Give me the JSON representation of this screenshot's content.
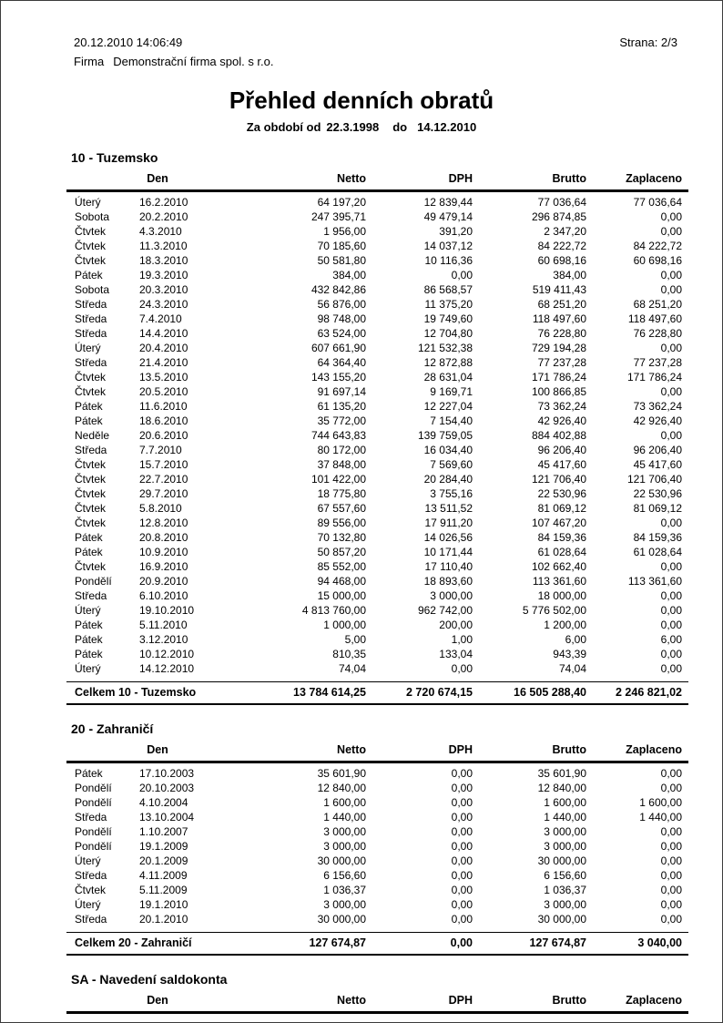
{
  "header": {
    "printed_at": "20.12.2010  14:06:49",
    "page_label": "Strana: 2/3",
    "firm_label": "Firma",
    "firm_name": "Demonstrační firma spol. s r.o.",
    "title": "Přehled denních obratů",
    "period": {
      "prefix": "Za období od",
      "from": "22.3.1998",
      "do_label": "do",
      "to": "14.12.2010"
    }
  },
  "columns": [
    "Den",
    "Netto",
    "DPH",
    "Brutto",
    "Zaplaceno"
  ],
  "sections": [
    {
      "title": "10 - Tuzemsko",
      "rows": [
        [
          "Úterý",
          "16.2.2010",
          "64 197,20",
          "12 839,44",
          "77 036,64",
          "77 036,64"
        ],
        [
          "Sobota",
          "20.2.2010",
          "247 395,71",
          "49 479,14",
          "296 874,85",
          "0,00"
        ],
        [
          "Čtvtek",
          "4.3.2010",
          "1 956,00",
          "391,20",
          "2 347,20",
          "0,00"
        ],
        [
          "Čtvtek",
          "11.3.2010",
          "70 185,60",
          "14 037,12",
          "84 222,72",
          "84 222,72"
        ],
        [
          "Čtvtek",
          "18.3.2010",
          "50 581,80",
          "10 116,36",
          "60 698,16",
          "60 698,16"
        ],
        [
          "Pátek",
          "19.3.2010",
          "384,00",
          "0,00",
          "384,00",
          "0,00"
        ],
        [
          "Sobota",
          "20.3.2010",
          "432 842,86",
          "86 568,57",
          "519 411,43",
          "0,00"
        ],
        [
          "Středa",
          "24.3.2010",
          "56 876,00",
          "11 375,20",
          "68 251,20",
          "68 251,20"
        ],
        [
          "Středa",
          "7.4.2010",
          "98 748,00",
          "19 749,60",
          "118 497,60",
          "118 497,60"
        ],
        [
          "Středa",
          "14.4.2010",
          "63 524,00",
          "12 704,80",
          "76 228,80",
          "76 228,80"
        ],
        [
          "Úterý",
          "20.4.2010",
          "607 661,90",
          "121 532,38",
          "729 194,28",
          "0,00"
        ],
        [
          "Středa",
          "21.4.2010",
          "64 364,40",
          "12 872,88",
          "77 237,28",
          "77 237,28"
        ],
        [
          "Čtvtek",
          "13.5.2010",
          "143 155,20",
          "28 631,04",
          "171 786,24",
          "171 786,24"
        ],
        [
          "Čtvtek",
          "20.5.2010",
          "91 697,14",
          "9 169,71",
          "100 866,85",
          "0,00"
        ],
        [
          "Pátek",
          "11.6.2010",
          "61 135,20",
          "12 227,04",
          "73 362,24",
          "73 362,24"
        ],
        [
          "Pátek",
          "18.6.2010",
          "35 772,00",
          "7 154,40",
          "42 926,40",
          "42 926,40"
        ],
        [
          "Neděle",
          "20.6.2010",
          "744 643,83",
          "139 759,05",
          "884 402,88",
          "0,00"
        ],
        [
          "Středa",
          "7.7.2010",
          "80 172,00",
          "16 034,40",
          "96 206,40",
          "96 206,40"
        ],
        [
          "Čtvtek",
          "15.7.2010",
          "37 848,00",
          "7 569,60",
          "45 417,60",
          "45 417,60"
        ],
        [
          "Čtvtek",
          "22.7.2010",
          "101 422,00",
          "20 284,40",
          "121 706,40",
          "121 706,40"
        ],
        [
          "Čtvtek",
          "29.7.2010",
          "18 775,80",
          "3 755,16",
          "22 530,96",
          "22 530,96"
        ],
        [
          "Čtvtek",
          "5.8.2010",
          "67 557,60",
          "13 511,52",
          "81 069,12",
          "81 069,12"
        ],
        [
          "Čtvtek",
          "12.8.2010",
          "89 556,00",
          "17 911,20",
          "107 467,20",
          "0,00"
        ],
        [
          "Pátek",
          "20.8.2010",
          "70 132,80",
          "14 026,56",
          "84 159,36",
          "84 159,36"
        ],
        [
          "Pátek",
          "10.9.2010",
          "50 857,20",
          "10 171,44",
          "61 028,64",
          "61 028,64"
        ],
        [
          "Čtvtek",
          "16.9.2010",
          "85 552,00",
          "17 110,40",
          "102 662,40",
          "0,00"
        ],
        [
          "Pondělí",
          "20.9.2010",
          "94 468,00",
          "18 893,60",
          "113 361,60",
          "113 361,60"
        ],
        [
          "Středa",
          "6.10.2010",
          "15 000,00",
          "3 000,00",
          "18 000,00",
          "0,00"
        ],
        [
          "Úterý",
          "19.10.2010",
          "4 813 760,00",
          "962 742,00",
          "5 776 502,00",
          "0,00"
        ],
        [
          "Pátek",
          "5.11.2010",
          "1 000,00",
          "200,00",
          "1 200,00",
          "0,00"
        ],
        [
          "Pátek",
          "3.12.2010",
          "5,00",
          "1,00",
          "6,00",
          "6,00"
        ],
        [
          "Pátek",
          "10.12.2010",
          "810,35",
          "133,04",
          "943,39",
          "0,00"
        ],
        [
          "Úterý",
          "14.12.2010",
          "74,04",
          "0,00",
          "74,04",
          "0,00"
        ]
      ],
      "total": {
        "label": "Celkem 10 - Tuzemsko",
        "values": [
          "13 784 614,25",
          "2 720 674,15",
          "16 505 288,40",
          "2 246 821,02"
        ]
      }
    },
    {
      "title": "20 - Zahraničí",
      "rows": [
        [
          "Pátek",
          "17.10.2003",
          "35 601,90",
          "0,00",
          "35 601,90",
          "0,00"
        ],
        [
          "Pondělí",
          "20.10.2003",
          "12 840,00",
          "0,00",
          "12 840,00",
          "0,00"
        ],
        [
          "Pondělí",
          "4.10.2004",
          "1 600,00",
          "0,00",
          "1 600,00",
          "1 600,00"
        ],
        [
          "Středa",
          "13.10.2004",
          "1 440,00",
          "0,00",
          "1 440,00",
          "1 440,00"
        ],
        [
          "Pondělí",
          "1.10.2007",
          "3 000,00",
          "0,00",
          "3 000,00",
          "0,00"
        ],
        [
          "Pondělí",
          "19.1.2009",
          "3 000,00",
          "0,00",
          "3 000,00",
          "0,00"
        ],
        [
          "Úterý",
          "20.1.2009",
          "30 000,00",
          "0,00",
          "30 000,00",
          "0,00"
        ],
        [
          "Středa",
          "4.11.2009",
          "6 156,60",
          "0,00",
          "6 156,60",
          "0,00"
        ],
        [
          "Čtvtek",
          "5.11.2009",
          "1 036,37",
          "0,00",
          "1 036,37",
          "0,00"
        ],
        [
          "Úterý",
          "19.1.2010",
          "3 000,00",
          "0,00",
          "3 000,00",
          "0,00"
        ],
        [
          "Středa",
          "20.1.2010",
          "30 000,00",
          "0,00",
          "30 000,00",
          "0,00"
        ]
      ],
      "total": {
        "label": "Celkem 20 - Zahraničí",
        "values": [
          "127 674,87",
          "0,00",
          "127 674,87",
          "3 040,00"
        ]
      }
    },
    {
      "title": "SA - Navedení saldokonta",
      "rows": []
    }
  ]
}
